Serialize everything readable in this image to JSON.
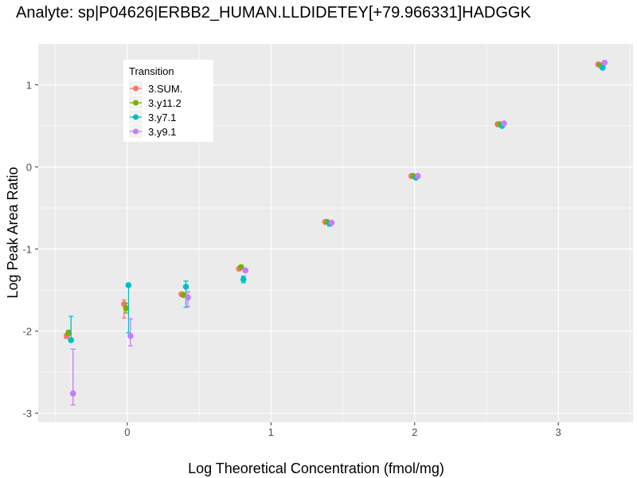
{
  "chart_data": {
    "type": "scatter",
    "title": "Analyte: sp|P04626|ERBB2_HUMAN.LLDIDETEY[+79.966331]HADGGK",
    "xlabel": "Log Theoretical Concentration (fmol/mg)",
    "ylabel": "Log Peak Area Ratio",
    "xlim": [
      -0.62,
      3.52
    ],
    "ylim": [
      -3.11,
      1.5
    ],
    "xticks": [
      0,
      1,
      2,
      3
    ],
    "yticks": [
      -3,
      -2,
      -1,
      0,
      1
    ],
    "grid": true,
    "legend": {
      "title": "Transition",
      "position": "top-left"
    },
    "x": [
      -0.4,
      0,
      0.4,
      0.8,
      1.4,
      2,
      2.6,
      3.3
    ],
    "series": [
      {
        "name": "3.SUM.",
        "color": "#F8766D",
        "values": [
          -2.06,
          -1.67,
          -1.55,
          -1.24,
          -0.67,
          -0.11,
          0.52,
          1.25
        ],
        "err_low": [
          -2.09,
          -1.84,
          -1.57,
          -1.26,
          -0.68,
          -0.12,
          0.51,
          1.24
        ],
        "err_high": [
          -2.03,
          -1.62,
          -1.53,
          -1.22,
          -0.66,
          -0.1,
          0.53,
          1.26
        ]
      },
      {
        "name": "3.y11.2",
        "color": "#7CAE00",
        "values": [
          -2.02,
          -1.72,
          -1.56,
          -1.22,
          -0.67,
          -0.11,
          0.52,
          1.24
        ],
        "err_low": [
          -2.05,
          -1.78,
          -1.58,
          -1.24,
          -0.68,
          -0.12,
          0.51,
          1.23
        ],
        "err_high": [
          -1.99,
          -1.66,
          -1.54,
          -1.2,
          -0.66,
          -0.1,
          0.53,
          1.25
        ]
      },
      {
        "name": "3.y7.1",
        "color": "#00BFC4",
        "values": [
          -2.11,
          -1.44,
          -1.46,
          -1.37,
          -0.69,
          -0.13,
          0.5,
          1.21
        ],
        "err_low": [
          -2.13,
          -2.02,
          -1.71,
          -1.41,
          -0.72,
          -0.14,
          0.49,
          1.2
        ],
        "err_high": [
          -1.82,
          -1.44,
          -1.39,
          -1.33,
          -0.67,
          -0.12,
          0.51,
          1.22
        ]
      },
      {
        "name": "3.y9.1",
        "color": "#C77CFF",
        "values": [
          -2.76,
          -2.06,
          -1.59,
          -1.26,
          -0.68,
          -0.11,
          0.53,
          1.27
        ],
        "err_low": [
          -2.9,
          -2.18,
          -1.7,
          -1.28,
          -0.69,
          -0.12,
          0.52,
          1.26
        ],
        "err_high": [
          -2.22,
          -1.85,
          -1.52,
          -1.24,
          -0.67,
          -0.1,
          0.54,
          1.28
        ]
      }
    ]
  }
}
